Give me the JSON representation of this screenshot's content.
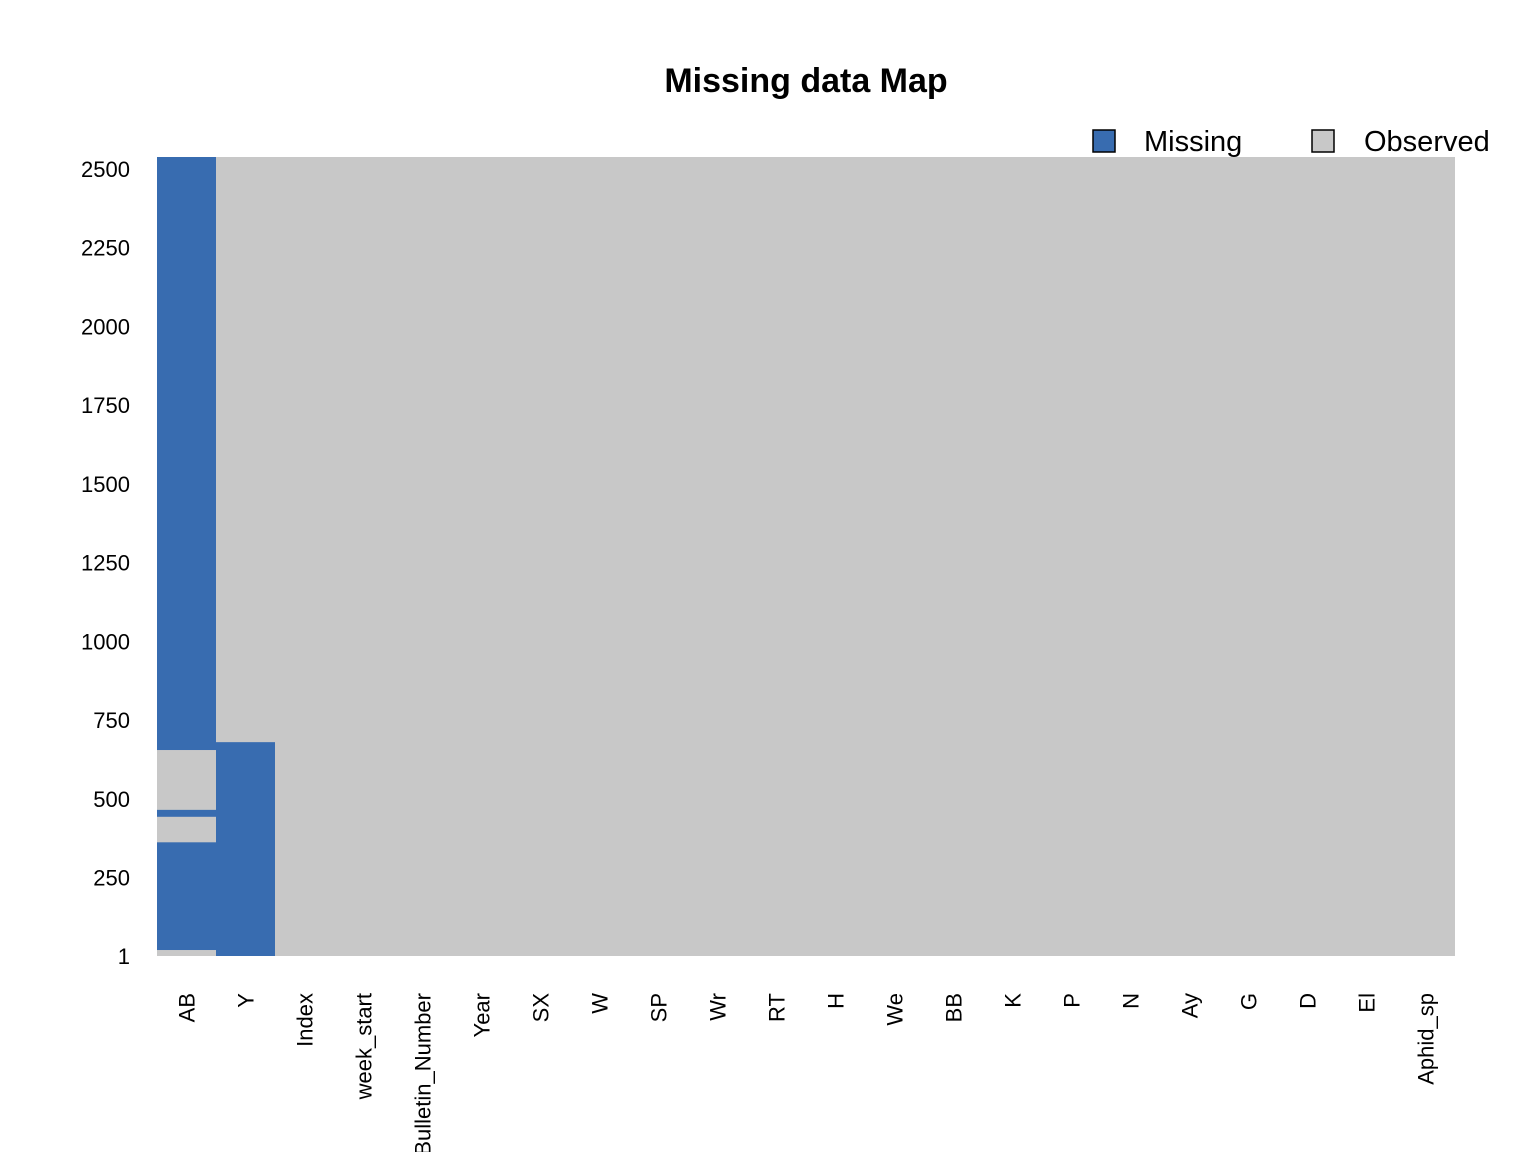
{
  "chart_data": {
    "type": "heatmap",
    "title": "Missing data Map",
    "legend": {
      "placement": "top-right",
      "items": [
        {
          "label": "Missing",
          "color": "#386cb0"
        },
        {
          "label": "Observed",
          "color": "#c8c8c8"
        }
      ]
    },
    "colors": {
      "missing": "#386cb0",
      "observed": "#c8c8c8"
    },
    "y_range": [
      1,
      2538
    ],
    "y_ticks": [
      "1",
      "250",
      "500",
      "750",
      "1000",
      "1250",
      "1500",
      "1750",
      "2000",
      "2250",
      "2500"
    ],
    "columns": [
      "AB",
      "Y",
      "Index",
      "week_start",
      "Bulletin_Number",
      "Year",
      "SX",
      "W",
      "SP",
      "Wr",
      "RT",
      "H",
      "We",
      "BB",
      "K",
      "P",
      "N",
      "Ay",
      "G",
      "D",
      "El",
      "Aphid_sp"
    ],
    "missing_ranges": {
      "AB": [
        [
          20,
          362
        ],
        [
          443,
          465
        ],
        [
          655,
          2538
        ]
      ],
      "Y": [
        [
          1,
          680
        ]
      ]
    }
  }
}
